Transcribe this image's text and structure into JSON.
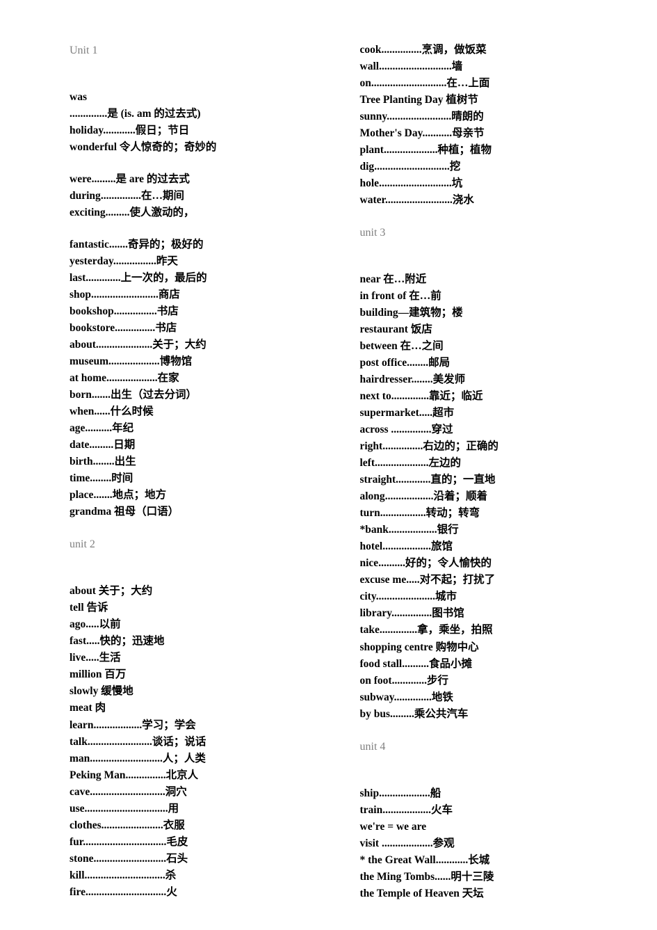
{
  "colors": {
    "background": "#ffffff",
    "text": "#000000",
    "unit_header": "#7f7f7f"
  },
  "typography": {
    "body_fontsize": 15.5,
    "header_fontsize": 16,
    "line_height": 1.55
  },
  "left_column": [
    {
      "type": "header",
      "text": "Unit 1"
    },
    {
      "type": "gap"
    },
    {
      "type": "entry",
      "word": "was",
      "dots": "",
      "def": ""
    },
    {
      "type": "entry",
      "word": "",
      "dots": "..............",
      "def": "是 (is. am 的过去式)"
    },
    {
      "type": "entry",
      "word": "holiday",
      "dots": "............",
      "def": "假日；节日"
    },
    {
      "type": "entry",
      "word": "wonderful",
      "dots": " ",
      "def": "令人惊奇的；奇妙的"
    },
    {
      "type": "gap"
    },
    {
      "type": "entry",
      "word": "were",
      "dots": ".........",
      "def": "是 are 的过去式"
    },
    {
      "type": "entry",
      "word": "during",
      "dots": "...............",
      "def": "在…期间"
    },
    {
      "type": "entry",
      "word": "exciting",
      "dots": ".........",
      "def": "使人激动的，"
    },
    {
      "type": "gap"
    },
    {
      "type": "entry",
      "word": "fantastic",
      "dots": ".......",
      "def": "奇异的；极好的"
    },
    {
      "type": "entry",
      "word": "yesterday",
      "dots": "................",
      "def": "昨天"
    },
    {
      "type": "entry",
      "word": "last",
      "dots": ".............",
      "def": "上一次的，最后的"
    },
    {
      "type": "entry",
      "word": "shop",
      "dots": ".........................",
      "def": "商店"
    },
    {
      "type": "entry",
      "word": "bookshop",
      "dots": "................",
      "def": "书店"
    },
    {
      "type": "entry",
      "word": "bookstore",
      "dots": "...............",
      "def": "书店"
    },
    {
      "type": "entry",
      "word": "about",
      "dots": ".....................",
      "def": "关于；大约"
    },
    {
      "type": "entry",
      "word": "museum",
      "dots": "...................",
      "def": "博物馆"
    },
    {
      "type": "entry",
      "word": "at home",
      "dots": "...................",
      "def": "在家"
    },
    {
      "type": "entry",
      "word": "born",
      "dots": ".......",
      "def": "出生（过去分词）"
    },
    {
      "type": "entry",
      "word": "when",
      "dots": "......",
      "def": "什么时候"
    },
    {
      "type": "entry",
      "word": "age",
      "dots": "..........",
      "def": "年纪"
    },
    {
      "type": "entry",
      "word": "date",
      "dots": ".........",
      "def": "日期"
    },
    {
      "type": "entry",
      "word": "birth",
      "dots": "........",
      "def": "出生"
    },
    {
      "type": "entry",
      "word": "time",
      "dots": "........",
      "def": "时间"
    },
    {
      "type": "entry",
      "word": "place",
      "dots": ".......",
      "def": "地点；地方"
    },
    {
      "type": "entry",
      "word": "grandma",
      "dots": " ",
      "def": "祖母（口语）"
    },
    {
      "type": "gap"
    },
    {
      "type": "header",
      "text": "unit 2"
    },
    {
      "type": "gap"
    },
    {
      "type": "entry",
      "word": "about",
      "dots": "  ",
      "def": "关于；大约"
    },
    {
      "type": "entry",
      "word": "tell",
      "dots": " ",
      "def": "告诉"
    },
    {
      "type": "entry",
      "word": "ago",
      "dots": ".....",
      "def": "以前"
    },
    {
      "type": "entry",
      "word": "fast",
      "dots": ".....",
      "def": "快的；迅速地"
    },
    {
      "type": "entry",
      "word": "live",
      "dots": ".....",
      "def": "生活"
    },
    {
      "type": "entry",
      "word": "million",
      "dots": "  ",
      "def": "百万"
    },
    {
      "type": "entry",
      "word": "slowly",
      "dots": "  ",
      "def": "缓慢地"
    },
    {
      "type": "entry",
      "word": "meat",
      "dots": " ",
      "def": "肉"
    },
    {
      "type": "entry",
      "word": "learn",
      "dots": "..................",
      "def": "学习；学会"
    },
    {
      "type": "entry",
      "word": "talk",
      "dots": "........................",
      "def": "谈话；说话"
    },
    {
      "type": "entry",
      "word": "man",
      "dots": "...........................",
      "def": "人；人类"
    },
    {
      "type": "entry",
      "word": "Peking Man",
      "dots": "...............",
      "def": "北京人"
    },
    {
      "type": "entry",
      "word": "cave",
      "dots": "............................",
      "def": "洞穴"
    },
    {
      "type": "entry",
      "word": "use",
      "dots": "...............................",
      "def": "用"
    },
    {
      "type": "entry",
      "word": "clothes",
      "dots": ".......................",
      "def": "衣服"
    },
    {
      "type": "entry",
      "word": "fur",
      "dots": "...............................",
      "def": "毛皮"
    },
    {
      "type": "entry",
      "word": "stone",
      "dots": "...........................",
      "def": "石头"
    },
    {
      "type": "entry",
      "word": "kill",
      "dots": "..............................",
      "def": "杀"
    },
    {
      "type": "entry",
      "word": "fire",
      "dots": "..............................",
      "def": "火"
    }
  ],
  "right_column": [
    {
      "type": "entry",
      "word": "cook",
      "dots": "...............",
      "def": "烹调，做饭菜"
    },
    {
      "type": "entry",
      "word": "wall",
      "dots": "...........................",
      "def": "墙"
    },
    {
      "type": "entry",
      "word": "on",
      "dots": "............................",
      "def": "在…上面"
    },
    {
      "type": "entry",
      "word": "Tree Planting Day",
      "dots": "  ",
      "def": "植树节"
    },
    {
      "type": "entry",
      "word": "sunny",
      "dots": "........................",
      "def": "晴朗的"
    },
    {
      "type": "entry",
      "word": "Mother's Day",
      "dots": "...........",
      "def": "母亲节"
    },
    {
      "type": "entry",
      "word": "plant",
      "dots": "....................",
      "def": "种植；植物"
    },
    {
      "type": "entry",
      "word": "dig",
      "dots": "............................",
      "def": "挖"
    },
    {
      "type": "entry",
      "word": "hole",
      "dots": "...........................",
      "def": "坑"
    },
    {
      "type": "entry",
      "word": "water",
      "dots": ".........................",
      "def": "浇水"
    },
    {
      "type": "gap"
    },
    {
      "type": "header",
      "text": "unit 3"
    },
    {
      "type": "gap"
    },
    {
      "type": "entry",
      "word": "near",
      "dots": " ",
      "def": "在…附近"
    },
    {
      "type": "entry",
      "word": "in front of",
      "dots": " ",
      "def": "在…前"
    },
    {
      "type": "entry",
      "word": "building",
      "dots": "—",
      "def": "建筑物；楼"
    },
    {
      "type": "entry",
      "word": "restaurant",
      "dots": " ",
      "def": "饭店"
    },
    {
      "type": "entry",
      "word": "between",
      "dots": "  ",
      "def": "在…之间"
    },
    {
      "type": "entry",
      "word": "post office",
      "dots": "........",
      "def": "邮局"
    },
    {
      "type": "entry",
      "word": "hairdresser",
      "dots": "........",
      "def": "美发师"
    },
    {
      "type": "entry",
      "word": "next to",
      "dots": "..............",
      "def": "靠近；临近"
    },
    {
      "type": "entry",
      "word": "supermarket",
      "dots": ".....",
      "def": "超市"
    },
    {
      "type": "entry",
      "word": "across ",
      "dots": "...............",
      "def": "穿过"
    },
    {
      "type": "entry",
      "word": "right",
      "dots": "...............",
      "def": "右边的；正确的"
    },
    {
      "type": "entry",
      "word": "left",
      "dots": "....................",
      "def": "左边的"
    },
    {
      "type": "entry",
      "word": "straight",
      "dots": ".............",
      "def": "直的；一直地"
    },
    {
      "type": "entry",
      "word": "along",
      "dots": "..................",
      "def": "沿着；顺着"
    },
    {
      "type": "entry",
      "word": "turn",
      "dots": ".................",
      "def": "转动；转弯"
    },
    {
      "type": "entry",
      "word": "*bank",
      "dots": "..................",
      "def": "银行"
    },
    {
      "type": "entry",
      "word": "hotel",
      "dots": "..................",
      "def": "旅馆"
    },
    {
      "type": "entry",
      "word": "nice",
      "dots": "..........",
      "def": "好的；令人愉快的"
    },
    {
      "type": "entry",
      "word": "excuse me",
      "dots": ".....",
      "def": "对不起；打扰了"
    },
    {
      "type": "entry",
      "word": "city",
      "dots": "......................",
      "def": "城市"
    },
    {
      "type": "entry",
      "word": "library",
      "dots": "...............",
      "def": "图书馆"
    },
    {
      "type": "entry",
      "word": "take",
      "dots": "..............",
      "def": "拿，乘坐，拍照"
    },
    {
      "type": "entry",
      "word": "shopping centre",
      "dots": " ",
      "def": "购物中心"
    },
    {
      "type": "entry",
      "word": "food stall",
      "dots": "..........",
      "def": "食品小摊"
    },
    {
      "type": "entry",
      "word": "on foot",
      "dots": ".............",
      "def": "步行"
    },
    {
      "type": "entry",
      "word": "subway",
      "dots": "..............",
      "def": "地铁"
    },
    {
      "type": "entry",
      "word": "by bus",
      "dots": ".........",
      "def": "乘公共汽车"
    },
    {
      "type": "gap"
    },
    {
      "type": "header",
      "text": "unit 4"
    },
    {
      "type": "gap"
    },
    {
      "type": "entry",
      "word": "ship",
      "dots": "...................",
      "def": "船"
    },
    {
      "type": "entry",
      "word": "train",
      "dots": "..................",
      "def": "火车"
    },
    {
      "type": "entry",
      "word": "we're = we are",
      "dots": "",
      "def": ""
    },
    {
      "type": "entry",
      "word": "visit ",
      "dots": "...................",
      "def": "参观"
    },
    {
      "type": "entry",
      "word": "* the Great Wall",
      "dots": "............",
      "def": "长城"
    },
    {
      "type": "entry",
      "word": "the Ming Tombs",
      "dots": "......",
      "def": "明十三陵"
    },
    {
      "type": "entry",
      "word": "the Temple of Heaven",
      "dots": " ",
      "def": "天坛"
    }
  ]
}
